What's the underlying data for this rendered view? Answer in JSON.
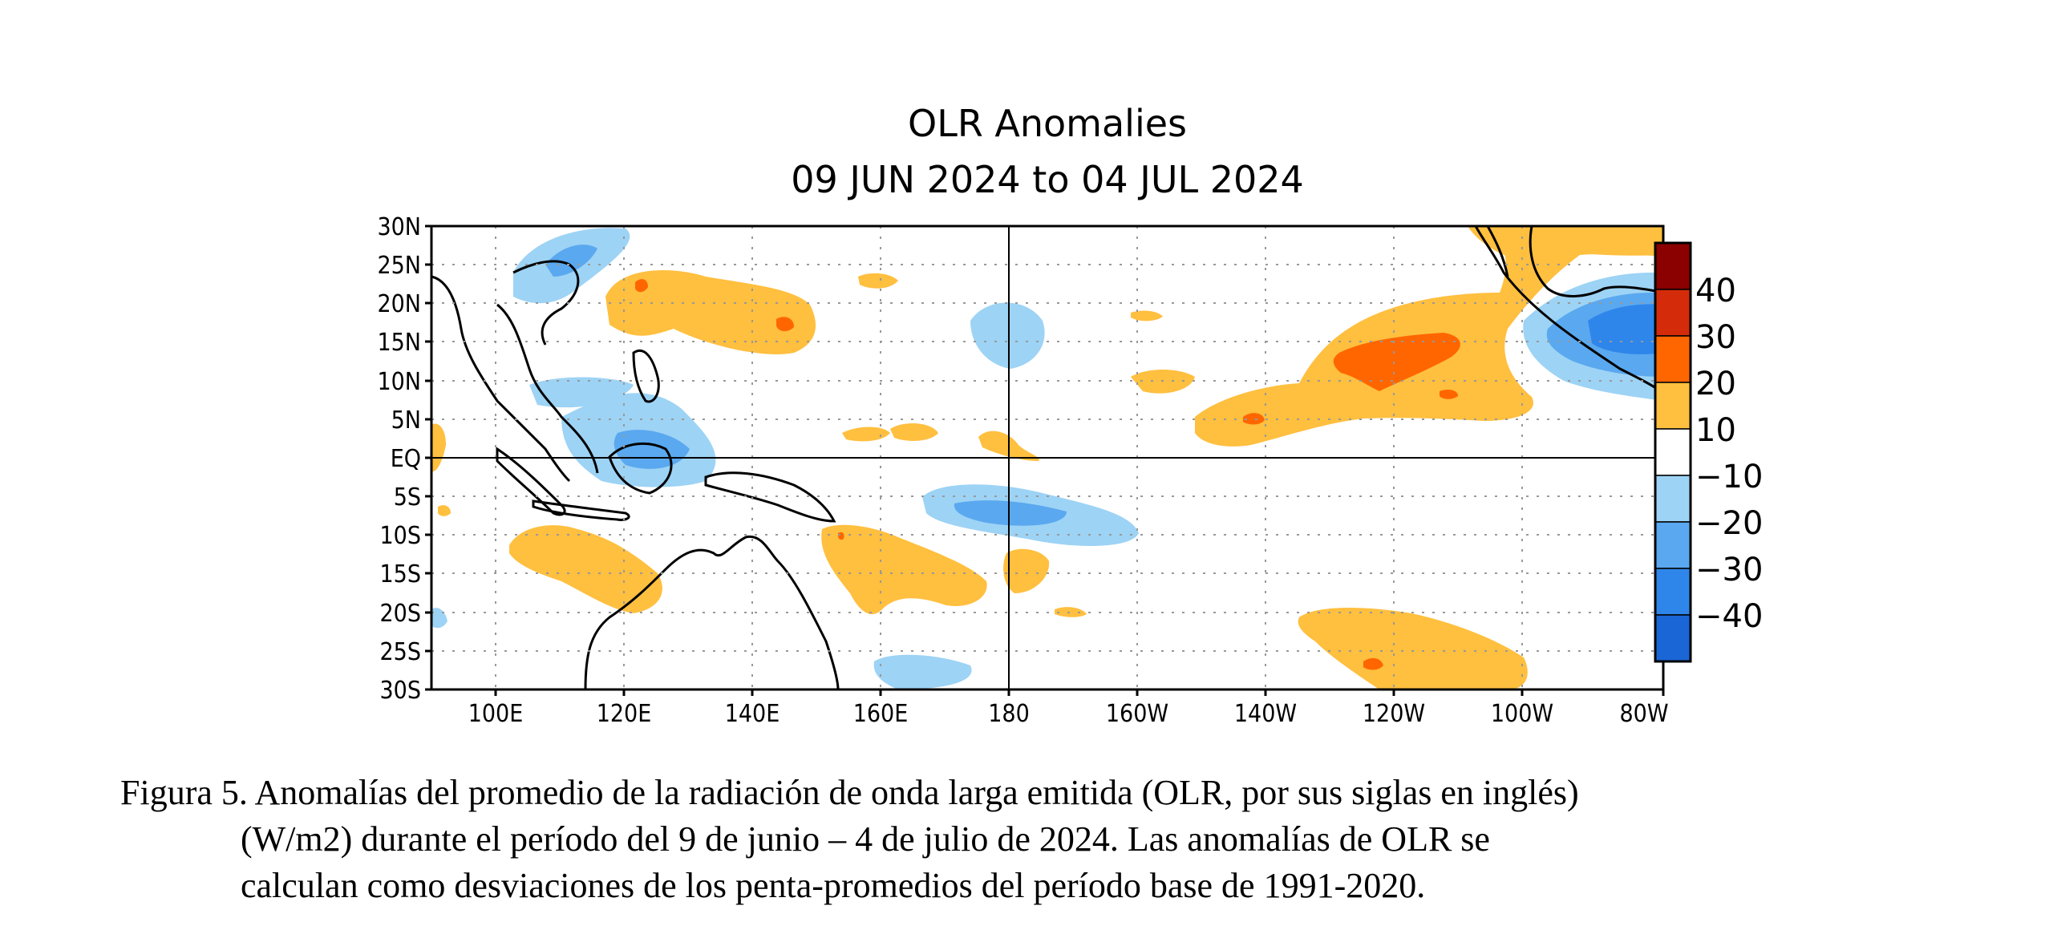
{
  "map": {
    "title_line1": "OLR Anomalies",
    "title_line2": "09 JUN 2024 to 04 JUL 2024",
    "lat_labels": [
      "30N",
      "25N",
      "20N",
      "15N",
      "10N",
      "5N",
      "EQ",
      "5S",
      "10S",
      "15S",
      "20S",
      "25S",
      "30S"
    ],
    "lon_labels": [
      "100E",
      "120E",
      "140E",
      "160E",
      "180",
      "160W",
      "140W",
      "120W",
      "100W",
      "80W"
    ],
    "colorbar": {
      "labels": [
        "40",
        "30",
        "20",
        "10",
        "−10",
        "−20",
        "−30",
        "−40"
      ],
      "colors": [
        "#8b0000",
        "#d42b0a",
        "#ff6600",
        "#ffbf3f",
        "#ffffff",
        "#9dd3f5",
        "#5aa8ef",
        "#2f86ea",
        "#1a66d6"
      ]
    },
    "anomaly_colors": {
      "pos_20": "#ffbf3f",
      "pos_30": "#ff6600",
      "pos_40": "#d42b0a",
      "neg_10": "#9dd3f5",
      "neg_20": "#5aa8ef",
      "neg_30": "#2f86ea"
    }
  },
  "caption": {
    "line1": "Figura 5. Anomalías del promedio de la radiación de onda larga emitida (OLR, por sus siglas en inglés)",
    "line2": "(W/m2) durante el período del 9 de junio – 4 de julio de 2024.  Las anomalías de OLR se",
    "line3": "calculan como desviaciones de los penta-promedios del período base de 1991-2020."
  }
}
